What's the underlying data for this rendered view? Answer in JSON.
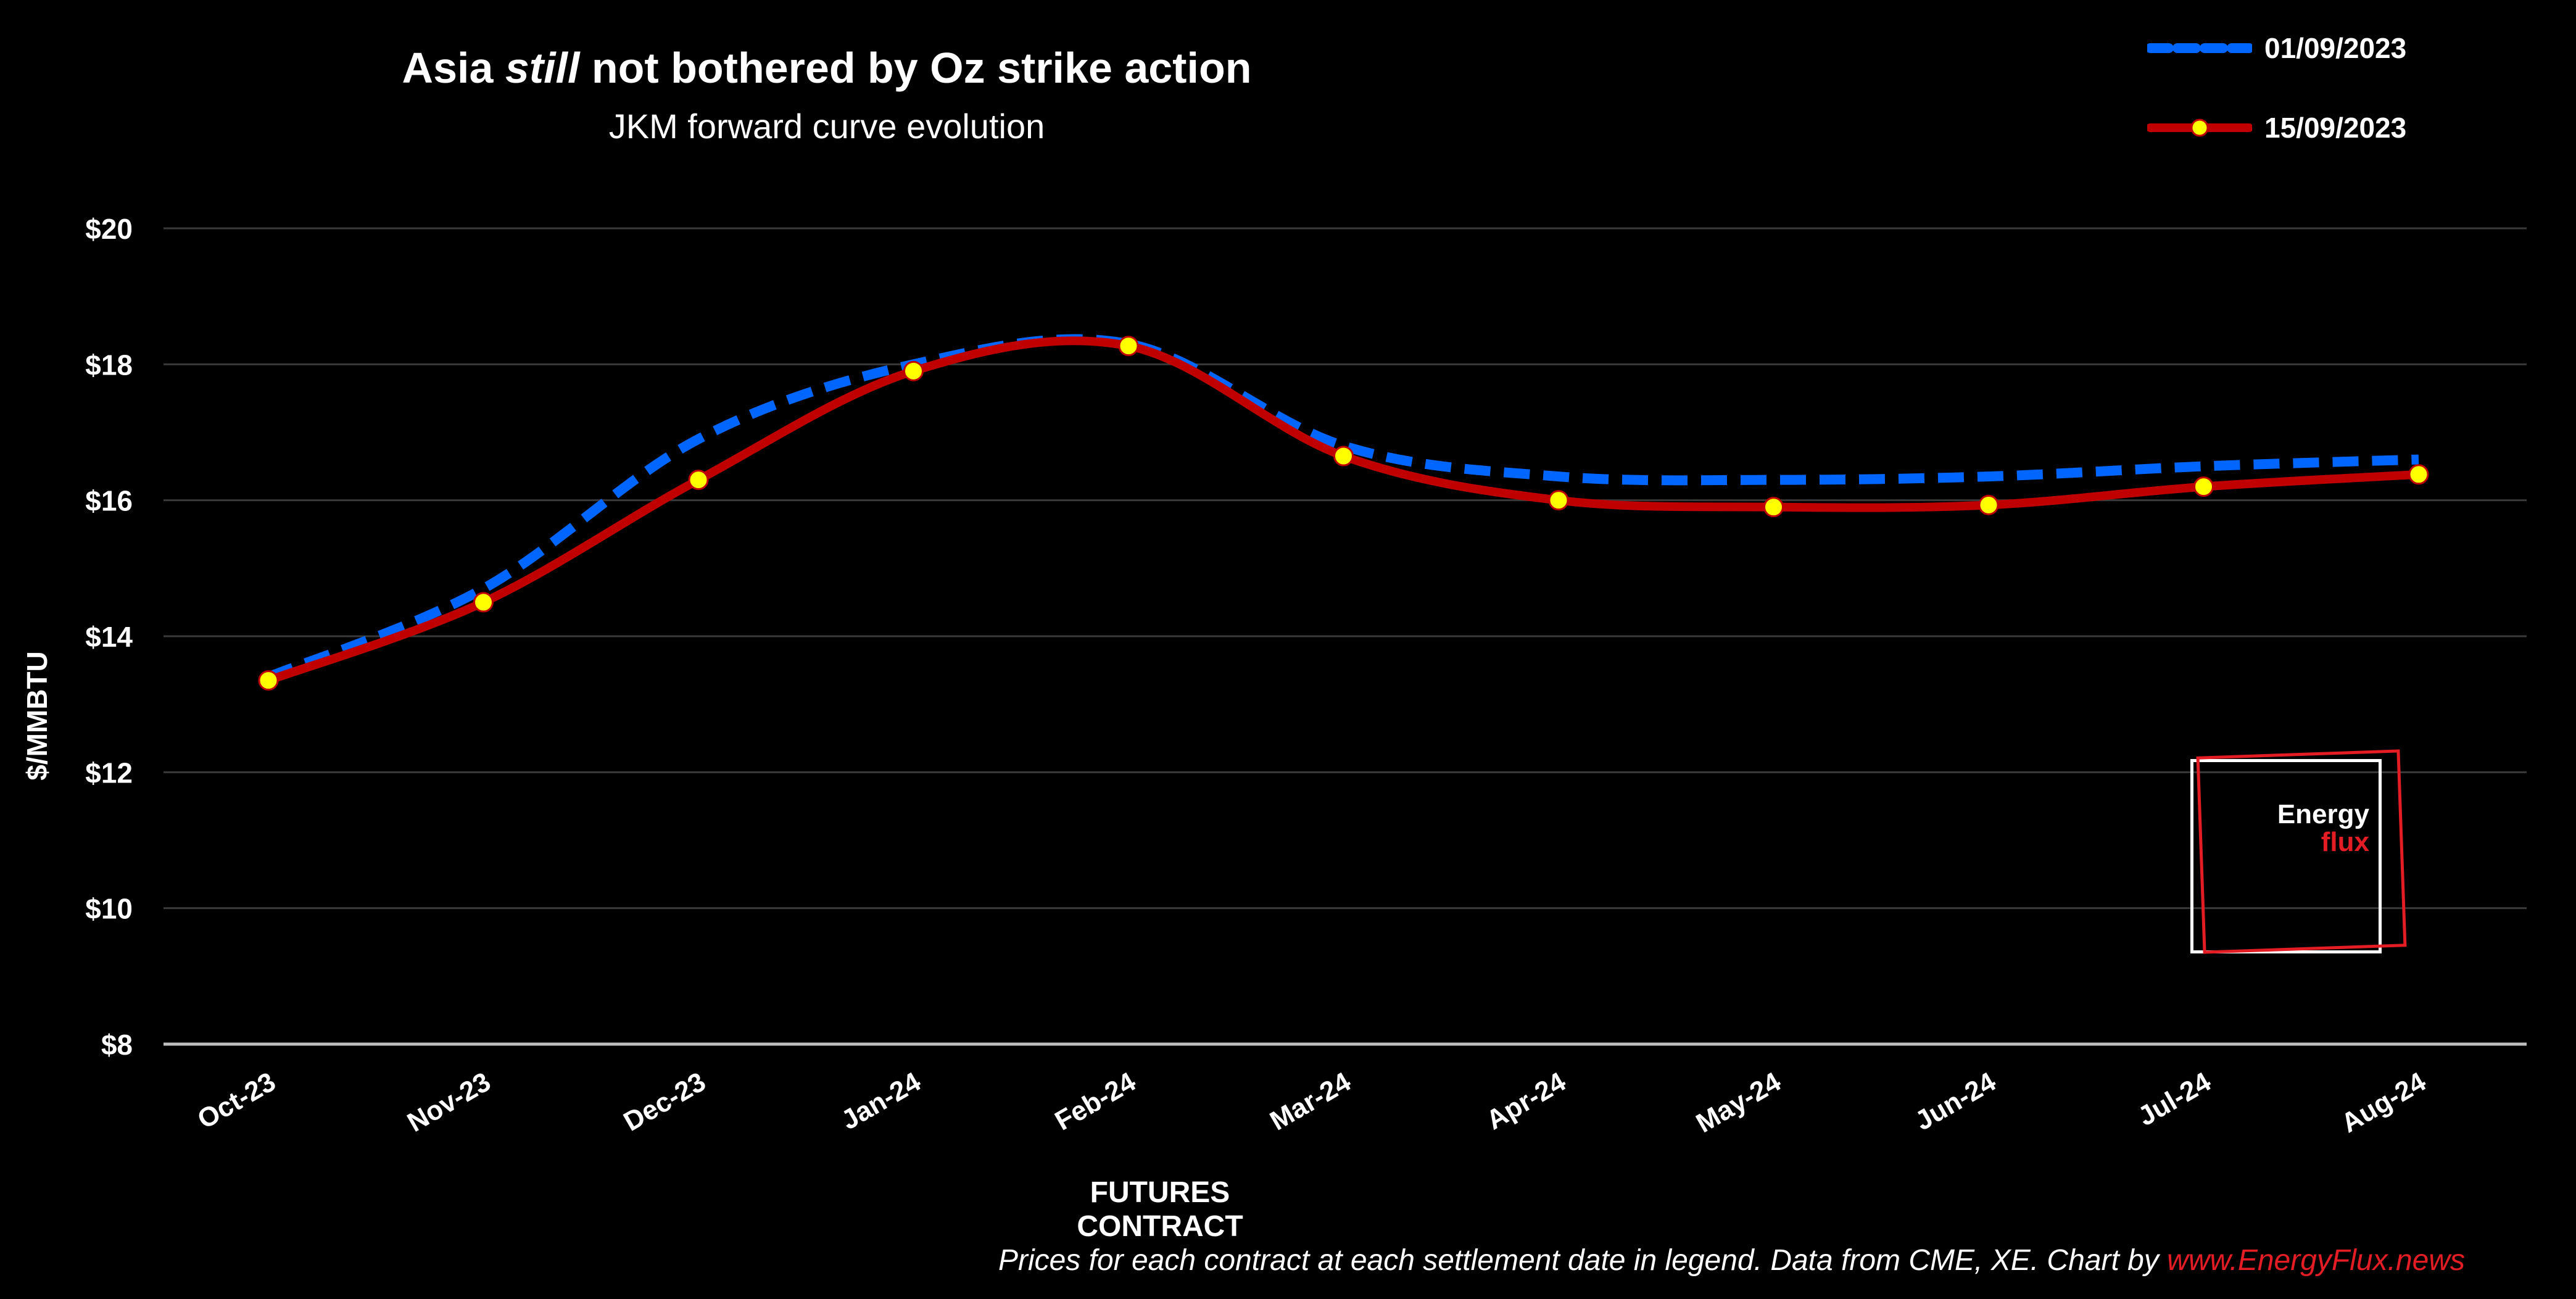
{
  "chart_data": {
    "type": "line",
    "title_parts": {
      "before": "Asia ",
      "emph": "still",
      "after": " not bothered by Oz strike action"
    },
    "subtitle": "JKM forward curve evolution",
    "xlabel": "FUTURES CONTRACT",
    "ylabel": "$/MMBTU",
    "categories": [
      "Oct-23",
      "Nov-23",
      "Dec-23",
      "Jan-24",
      "Feb-24",
      "Mar-24",
      "Apr-24",
      "May-24",
      "Jun-24",
      "Jul-24",
      "Aug-24"
    ],
    "ylim": [
      8,
      20
    ],
    "yticks": [
      8,
      10,
      12,
      14,
      16,
      18,
      20
    ],
    "ytick_labels": [
      "$8",
      "$10",
      "$12",
      "$14",
      "$16",
      "$18",
      "$20"
    ],
    "grid": true,
    "legend_position": "top-right",
    "series": [
      {
        "name": "01/09/2023",
        "color": "#0066ff",
        "style": "dashed",
        "markers": false,
        "values": [
          13.4,
          14.7,
          16.9,
          18.0,
          18.3,
          16.8,
          16.35,
          16.3,
          16.35,
          16.5,
          16.6
        ]
      },
      {
        "name": "15/09/2023",
        "color": "#c00000",
        "style": "solid",
        "markers": true,
        "marker_color": "#ffff00",
        "values": [
          13.35,
          14.5,
          16.3,
          17.9,
          18.27,
          16.65,
          16.0,
          15.9,
          15.93,
          16.2,
          16.38
        ]
      }
    ]
  },
  "footnote": {
    "text": "Prices for each contract at each settlement date in legend. Data from CME, XE. Chart by ",
    "link": "www.EnergyFlux.news"
  },
  "logo": {
    "word1": "Energy",
    "word2": "flux"
  },
  "colors": {
    "background": "#000000",
    "grid": "#3a3a3a",
    "axis": "#bfbfbf",
    "text": "#ffffff",
    "brand_red": "#e31d23"
  }
}
